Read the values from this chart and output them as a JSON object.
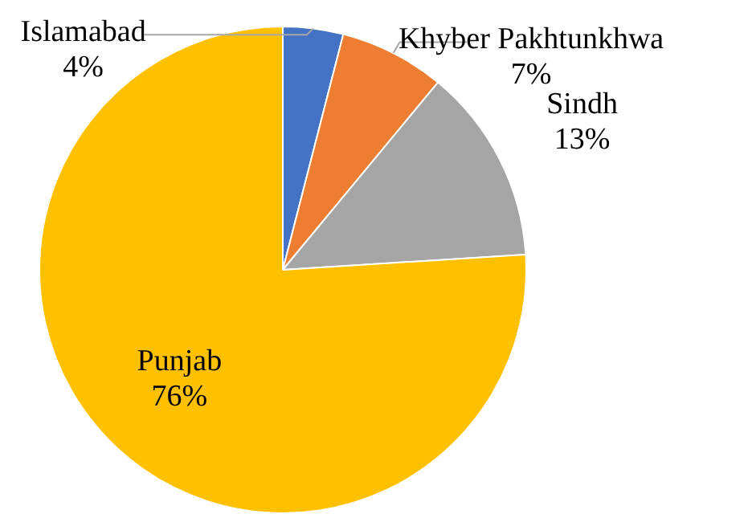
{
  "chart_data": {
    "type": "pie",
    "categories": [
      "Islamabad",
      "Khyber Pakhtunkhwa",
      "Sindh",
      "Punjab"
    ],
    "values": [
      4,
      7,
      13,
      76
    ],
    "colors": [
      "#4472c4",
      "#ed7d31",
      "#a5a5a5",
      "#ffc000"
    ],
    "value_labels": [
      "4%",
      "7%",
      "13%",
      "76%"
    ],
    "legend": false
  }
}
